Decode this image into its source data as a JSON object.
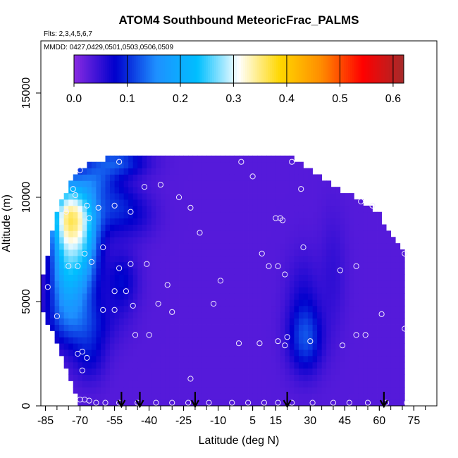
{
  "chart_data": {
    "type": "heatmap",
    "title": "ATOM4 Southbound MeteoricFrac_PALMS",
    "flights_label": "Flts: 2,3,4,5,6,7",
    "mmdd_label": "MMDD: 0427,0429,0501,0503,0506,0509",
    "xlabel": "Latitude (deg N)",
    "ylabel": "Altitude (m)",
    "xlim": [
      -87,
      85
    ],
    "ylim": [
      0,
      17500
    ],
    "x_ticks": [
      -85,
      -70,
      -55,
      -40,
      -25,
      -10,
      5,
      15,
      30,
      45,
      60,
      75
    ],
    "x_minor_ticks": [
      -85,
      -80,
      -75,
      -70,
      -65,
      -60,
      -55,
      -50,
      -45,
      -40,
      -35,
      -30,
      -25,
      -20,
      -15,
      -10,
      -5,
      0,
      5,
      10,
      15,
      20,
      25,
      30,
      35,
      40,
      45,
      50,
      55,
      60,
      65,
      70,
      75,
      80
    ],
    "y_ticks": [
      0,
      5000,
      10000,
      15000
    ],
    "colorbar": {
      "range": [
        0,
        0.62
      ],
      "ticks": [
        0.0,
        0.1,
        0.2,
        0.3,
        0.4,
        0.5,
        0.6
      ],
      "tick_labels": [
        "0.0",
        "0.1",
        "0.2",
        "0.3",
        "0.4",
        "0.5",
        "0.6"
      ],
      "colors": [
        "#8a2be2",
        "#0000cd",
        "#1e90ff",
        "#00bfff",
        "#ffffff",
        "#ffd700",
        "#ff8c00",
        "#ff0000",
        "#a52a2a"
      ]
    },
    "background_value": 0.03,
    "data_extent": [
      [
        -87,
        5800
      ],
      [
        -85,
        6600
      ],
      [
        -82,
        8300
      ],
      [
        -79,
        9800
      ],
      [
        -75,
        10500
      ],
      [
        -70,
        11300
      ],
      [
        -62,
        11800
      ],
      [
        -50,
        12000
      ],
      [
        -30,
        12000
      ],
      [
        -10,
        12000
      ],
      [
        10,
        12000
      ],
      [
        23,
        11900
      ],
      [
        30,
        11300
      ],
      [
        40,
        10500
      ],
      [
        50,
        10000
      ],
      [
        60,
        9200
      ],
      [
        65,
        8300
      ],
      [
        70,
        7400
      ],
      [
        72,
        6300
      ],
      [
        72,
        0
      ],
      [
        -70,
        0
      ],
      [
        -82,
        3500
      ],
      [
        -86,
        4500
      ]
    ],
    "features": [
      {
        "lat": -73,
        "alt": 9300,
        "value": 0.24,
        "sx": 7,
        "sy": 1100
      },
      {
        "lat": -69,
        "alt": 7400,
        "value": 0.18,
        "sx": 5,
        "sy": 1600
      },
      {
        "lat": -77,
        "alt": 7800,
        "value": 0.15,
        "sx": 4,
        "sy": 1800
      },
      {
        "lat": -76,
        "alt": 5600,
        "value": 0.1,
        "sx": 6,
        "sy": 1400
      },
      {
        "lat": -70,
        "alt": 4000,
        "value": 0.09,
        "sx": 10,
        "sy": 900
      },
      {
        "lat": -66,
        "alt": 2400,
        "value": 0.07,
        "sx": 5,
        "sy": 900
      },
      {
        "lat": -55,
        "alt": 9600,
        "value": 0.09,
        "sx": 6,
        "sy": 900
      },
      {
        "lat": -52,
        "alt": 6000,
        "value": 0.08,
        "sx": 5,
        "sy": 1000
      },
      {
        "lat": -45,
        "alt": 9200,
        "value": 0.06,
        "sx": 6,
        "sy": 800
      },
      {
        "lat": -55,
        "alt": 11700,
        "value": 0.12,
        "sx": 9,
        "sy": 500
      },
      {
        "lat": -63,
        "alt": 10800,
        "value": 0.08,
        "sx": 5,
        "sy": 500
      },
      {
        "lat": 28,
        "alt": 3200,
        "value": 0.11,
        "sx": 5,
        "sy": 1100
      },
      {
        "lat": 27,
        "alt": 5200,
        "value": 0.06,
        "sx": 5,
        "sy": 1500
      },
      {
        "lat": 40,
        "alt": 6300,
        "value": 0.05,
        "sx": 4,
        "sy": 2000
      }
    ],
    "sample_points": [
      {
        "lat": -84,
        "alt": 5700
      },
      {
        "lat": -76,
        "alt": 9300
      },
      {
        "lat": -73,
        "alt": 10400
      },
      {
        "lat": -72,
        "alt": 10100
      },
      {
        "lat": -70,
        "alt": 11300
      },
      {
        "lat": -67,
        "alt": 9600
      },
      {
        "lat": -66,
        "alt": 9000
      },
      {
        "lat": -62,
        "alt": 9500
      },
      {
        "lat": -55,
        "alt": 9600
      },
      {
        "lat": -53,
        "alt": 11700
      },
      {
        "lat": -48,
        "alt": 9300
      },
      {
        "lat": -42,
        "alt": 10500
      },
      {
        "lat": -35,
        "alt": 10600
      },
      {
        "lat": -27,
        "alt": 10000
      },
      {
        "lat": -22,
        "alt": 9500
      },
      {
        "lat": -18,
        "alt": 8300
      },
      {
        "lat": -75,
        "alt": 6700
      },
      {
        "lat": -71,
        "alt": 6700
      },
      {
        "lat": -68,
        "alt": 7300
      },
      {
        "lat": -65,
        "alt": 6900
      },
      {
        "lat": -60,
        "alt": 7600
      },
      {
        "lat": -53,
        "alt": 6600
      },
      {
        "lat": -48,
        "alt": 6800
      },
      {
        "lat": -41,
        "alt": 6800
      },
      {
        "lat": -32,
        "alt": 5800
      },
      {
        "lat": -55,
        "alt": 5500
      },
      {
        "lat": -50,
        "alt": 5500
      },
      {
        "lat": -60,
        "alt": 4600
      },
      {
        "lat": -55,
        "alt": 4600
      },
      {
        "lat": -47,
        "alt": 4800
      },
      {
        "lat": -36,
        "alt": 4900
      },
      {
        "lat": -30,
        "alt": 4500
      },
      {
        "lat": -12,
        "alt": 4900
      },
      {
        "lat": -80,
        "alt": 4300
      },
      {
        "lat": -46,
        "alt": 3400
      },
      {
        "lat": -40,
        "alt": 3400
      },
      {
        "lat": -69,
        "alt": 2600
      },
      {
        "lat": -71,
        "alt": 2500
      },
      {
        "lat": -67,
        "alt": 2300
      },
      {
        "lat": -69,
        "alt": 1700
      },
      {
        "lat": -9,
        "alt": 6000
      },
      {
        "lat": 0,
        "alt": 11700
      },
      {
        "lat": 5,
        "alt": 11000
      },
      {
        "lat": 15,
        "alt": 9000
      },
      {
        "lat": 17,
        "alt": 9000
      },
      {
        "lat": 18,
        "alt": 8900
      },
      {
        "lat": 22,
        "alt": 11700
      },
      {
        "lat": 26,
        "alt": 10400
      },
      {
        "lat": 27,
        "alt": 7600
      },
      {
        "lat": 9,
        "alt": 7300
      },
      {
        "lat": 12,
        "alt": 6700
      },
      {
        "lat": 16,
        "alt": 6700
      },
      {
        "lat": 19,
        "alt": 6300
      },
      {
        "lat": 43,
        "alt": 6500
      },
      {
        "lat": 50,
        "alt": 6700
      },
      {
        "lat": 52,
        "alt": 9800
      },
      {
        "lat": 57,
        "alt": 9600
      },
      {
        "lat": 61,
        "alt": 4400
      },
      {
        "lat": 71,
        "alt": 7300
      },
      {
        "lat": 71,
        "alt": 3700
      },
      {
        "lat": -1,
        "alt": 3000
      },
      {
        "lat": 8,
        "alt": 3000
      },
      {
        "lat": 16,
        "alt": 3100
      },
      {
        "lat": 19,
        "alt": 2900
      },
      {
        "lat": 20,
        "alt": 3300
      },
      {
        "lat": 30,
        "alt": 3100
      },
      {
        "lat": 44,
        "alt": 2900
      },
      {
        "lat": 50,
        "alt": 3400
      },
      {
        "lat": 54,
        "alt": 3400
      },
      {
        "lat": -22,
        "alt": 1300
      },
      {
        "lat": -70,
        "alt": 300
      },
      {
        "lat": -68,
        "alt": 300
      },
      {
        "lat": -66,
        "alt": 250
      },
      {
        "lat": -63,
        "alt": 150
      },
      {
        "lat": -59,
        "alt": 150
      },
      {
        "lat": -53,
        "alt": 150
      },
      {
        "lat": -45,
        "alt": 150
      },
      {
        "lat": -37,
        "alt": 150
      },
      {
        "lat": -30,
        "alt": 150
      },
      {
        "lat": -23,
        "alt": 150
      },
      {
        "lat": -14,
        "alt": 150
      },
      {
        "lat": -4,
        "alt": 150
      },
      {
        "lat": 3,
        "alt": 150
      },
      {
        "lat": 10,
        "alt": 150
      },
      {
        "lat": 16,
        "alt": 150
      },
      {
        "lat": 22,
        "alt": 150
      },
      {
        "lat": 31,
        "alt": 150
      },
      {
        "lat": 40,
        "alt": 150
      },
      {
        "lat": 47,
        "alt": 150
      },
      {
        "lat": 55,
        "alt": 150
      },
      {
        "lat": 63,
        "alt": 150
      },
      {
        "lat": 72,
        "alt": 150
      }
    ],
    "arrows_lat": [
      -52,
      -44,
      -20,
      20,
      62
    ]
  }
}
